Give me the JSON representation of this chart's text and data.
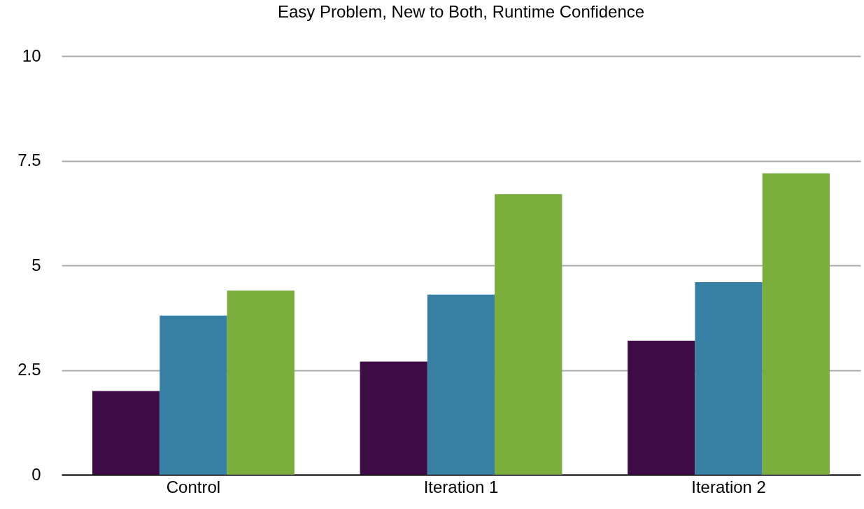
{
  "chart_data": {
    "type": "bar",
    "title": "Easy Problem, New to Both, Runtime Confidence",
    "categories": [
      "Control",
      "Iteration 1",
      "Iteration 2"
    ],
    "series": [
      {
        "color": "#3d0c47",
        "values": [
          2.0,
          2.7,
          3.2
        ]
      },
      {
        "color": "#377fa3",
        "values": [
          3.8,
          4.3,
          4.6
        ]
      },
      {
        "color": "#7aad3c",
        "values": [
          4.4,
          6.7,
          7.2
        ]
      }
    ],
    "ylim": [
      0,
      10
    ],
    "yticks": [
      0,
      2.5,
      5,
      7.5,
      10
    ],
    "grid": "y",
    "legend": false
  }
}
